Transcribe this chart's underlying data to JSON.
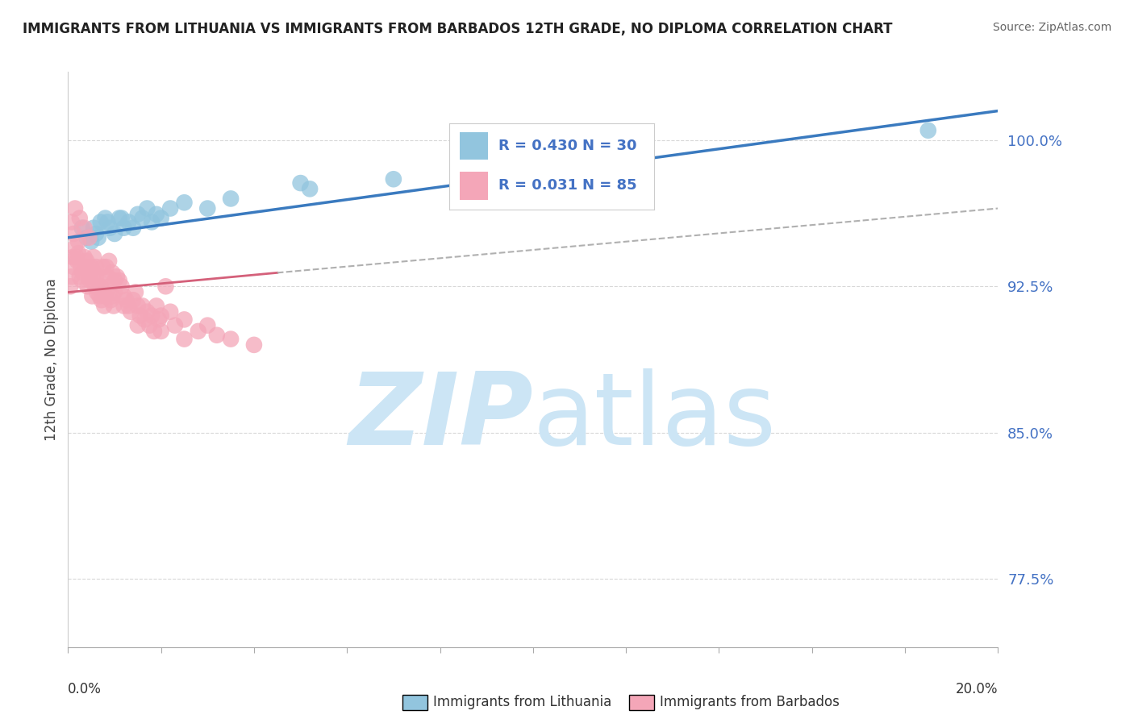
{
  "title": "IMMIGRANTS FROM LITHUANIA VS IMMIGRANTS FROM BARBADOS 12TH GRADE, NO DIPLOMA CORRELATION CHART",
  "source": "Source: ZipAtlas.com",
  "ylabel": "12th Grade, No Diploma",
  "y_ticks": [
    77.5,
    85.0,
    92.5,
    100.0
  ],
  "y_tick_labels": [
    "77.5%",
    "85.0%",
    "92.5%",
    "100.0%"
  ],
  "xlim": [
    0.0,
    20.0
  ],
  "ylim": [
    74.0,
    103.5
  ],
  "legend_R_lithuania": "0.430",
  "legend_N_lithuania": "30",
  "legend_R_barbados": "0.031",
  "legend_N_barbados": "85",
  "color_lithuania": "#92c5de",
  "color_barbados": "#f4a6b8",
  "color_trendline_lithuania": "#3a7abf",
  "color_trendline_barbados": "#d4607a",
  "color_trendline_dashed": "#b0b0b0",
  "background_color": "#ffffff",
  "grid_color": "#d8d8d8",
  "watermark_color": "#cce5f5",
  "lithuania_x": [
    0.3,
    0.4,
    0.5,
    0.6,
    0.7,
    0.8,
    0.9,
    1.0,
    1.1,
    1.2,
    1.3,
    1.4,
    1.5,
    1.6,
    1.7,
    1.8,
    1.9,
    2.0,
    2.2,
    2.5,
    3.0,
    3.5,
    5.0,
    5.2,
    7.0,
    18.5,
    0.55,
    0.65,
    0.85,
    1.15
  ],
  "lithuania_y": [
    95.5,
    95.0,
    94.8,
    95.2,
    95.8,
    96.0,
    95.5,
    95.2,
    96.0,
    95.5,
    95.8,
    95.5,
    96.2,
    96.0,
    96.5,
    95.8,
    96.2,
    96.0,
    96.5,
    96.8,
    96.5,
    97.0,
    97.8,
    97.5,
    98.0,
    100.5,
    95.5,
    95.0,
    95.8,
    96.0
  ],
  "barbados_x": [
    0.05,
    0.08,
    0.1,
    0.12,
    0.15,
    0.18,
    0.2,
    0.22,
    0.25,
    0.28,
    0.3,
    0.32,
    0.35,
    0.38,
    0.4,
    0.42,
    0.45,
    0.48,
    0.5,
    0.52,
    0.55,
    0.58,
    0.6,
    0.62,
    0.65,
    0.68,
    0.7,
    0.72,
    0.75,
    0.78,
    0.8,
    0.82,
    0.85,
    0.88,
    0.9,
    0.92,
    0.95,
    0.98,
    1.0,
    1.05,
    1.1,
    1.15,
    1.2,
    1.25,
    1.3,
    1.35,
    1.4,
    1.45,
    1.5,
    1.55,
    1.6,
    1.65,
    1.7,
    1.75,
    1.8,
    1.85,
    1.9,
    1.95,
    2.0,
    2.1,
    2.2,
    2.3,
    2.5,
    2.8,
    3.0,
    3.2,
    3.5,
    4.0,
    1.2,
    1.5,
    2.0,
    2.5,
    1.0,
    0.6,
    0.45,
    0.35,
    0.25,
    0.15,
    0.08,
    0.12,
    0.22,
    0.55,
    0.75,
    0.95
  ],
  "barbados_y": [
    92.5,
    93.0,
    94.0,
    93.5,
    94.5,
    94.0,
    93.8,
    94.2,
    93.0,
    93.5,
    92.8,
    93.2,
    94.0,
    93.5,
    93.8,
    92.5,
    93.0,
    92.8,
    93.5,
    92.0,
    93.2,
    92.5,
    93.0,
    92.2,
    92.8,
    92.0,
    92.5,
    91.8,
    92.2,
    91.5,
    92.0,
    93.5,
    93.0,
    93.8,
    92.5,
    91.8,
    92.0,
    91.5,
    92.2,
    93.0,
    92.8,
    92.5,
    92.0,
    91.8,
    91.5,
    91.2,
    91.8,
    92.2,
    91.5,
    91.0,
    91.5,
    90.8,
    91.2,
    90.5,
    91.0,
    90.2,
    91.5,
    90.8,
    91.0,
    92.5,
    91.2,
    90.5,
    90.8,
    90.2,
    90.5,
    90.0,
    89.8,
    89.5,
    91.5,
    90.5,
    90.2,
    89.8,
    92.8,
    93.5,
    95.0,
    95.5,
    96.0,
    96.5,
    95.8,
    95.2,
    94.8,
    94.0,
    93.5,
    93.2
  ],
  "trendline_lith_x0": 0.0,
  "trendline_lith_x1": 20.0,
  "trendline_lith_y0": 95.0,
  "trendline_lith_y1": 101.5,
  "trendline_barb_x0": 0.0,
  "trendline_barb_x1": 4.5,
  "trendline_barb_y0": 92.2,
  "trendline_barb_y1": 93.2,
  "trendline_barb_dash_x0": 4.5,
  "trendline_barb_dash_x1": 20.0,
  "trendline_barb_dash_y0": 93.2,
  "trendline_barb_dash_y1": 96.5
}
